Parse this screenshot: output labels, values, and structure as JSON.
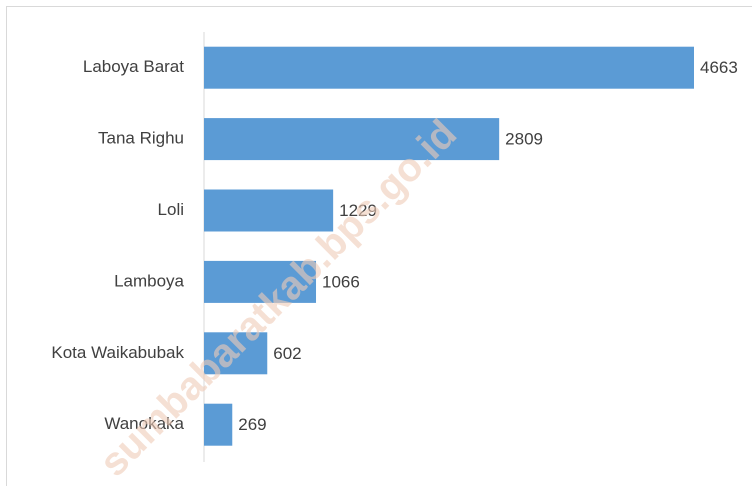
{
  "chart_data": {
    "type": "bar",
    "orientation": "horizontal",
    "categories": [
      "Laboya Barat",
      "Tana Righu",
      "Loli",
      "Lamboya",
      "Kota Waikabubak",
      "Wanokaka"
    ],
    "values": [
      4663,
      2809,
      1229,
      1066,
      602,
      269
    ],
    "color": "#5b9bd5",
    "watermark": "sumbabaratkab.bps.go.id"
  }
}
